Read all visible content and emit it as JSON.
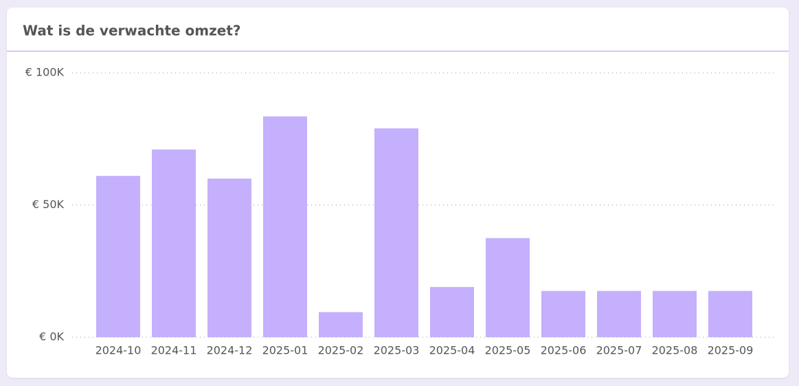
{
  "chart_data": {
    "type": "bar",
    "title": "Wat is de verwachte omzet?",
    "categories": [
      "2024-10",
      "2024-11",
      "2024-12",
      "2025-01",
      "2025-02",
      "2025-03",
      "2025-04",
      "2025-05",
      "2025-06",
      "2025-07",
      "2025-08",
      "2025-09"
    ],
    "values": [
      61000,
      71000,
      60000,
      83500,
      9500,
      79000,
      19000,
      37500,
      17500,
      17500,
      17500,
      17500
    ],
    "color": "#c4b0fc",
    "ylim": [
      0,
      100000
    ],
    "yticks": [
      {
        "value": 0,
        "label": "€ 0K"
      },
      {
        "value": 50000,
        "label": "€ 50K"
      },
      {
        "value": 100000,
        "label": "€ 100K"
      }
    ],
    "grid": true
  }
}
